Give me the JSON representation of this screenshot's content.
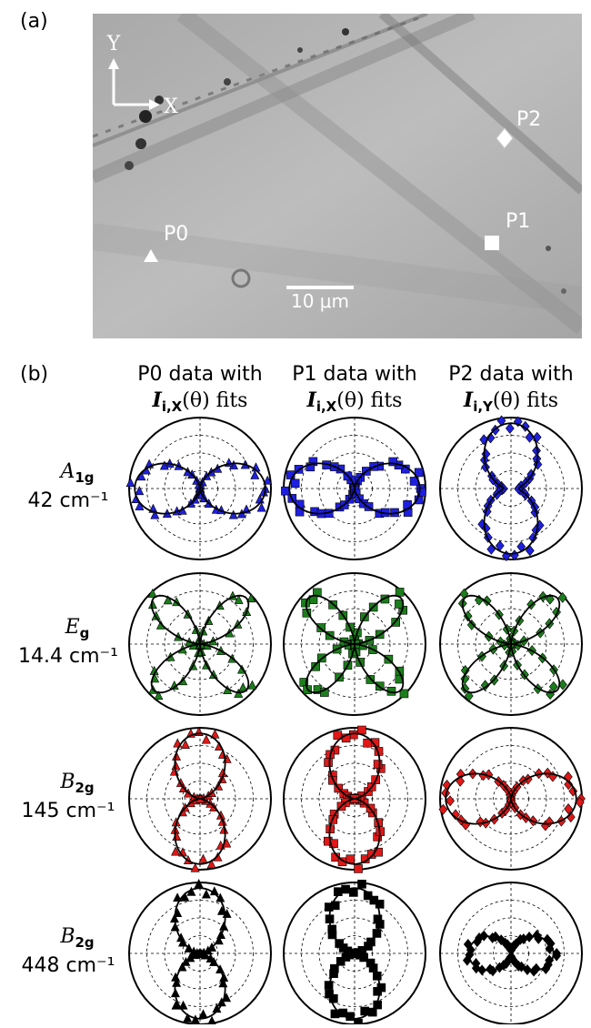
{
  "panel_a": {
    "label": "(a)",
    "axis_y": "Y",
    "axis_x": "X",
    "points": [
      "P0",
      "P1",
      "P2"
    ],
    "scale_bar": "10 μm"
  },
  "panel_b": {
    "label": "(b)",
    "columns": [
      {
        "line1": "P0 data with",
        "symbol": "I",
        "subscript": "i,X",
        "rest": "(θ) fits"
      },
      {
        "line1": "P1 data with",
        "symbol": "I",
        "subscript": "i,X",
        "rest": "(θ) fits"
      },
      {
        "line1": "P2 data with",
        "symbol": "I",
        "subscript": "i,Y",
        "rest": "(θ) fits"
      }
    ],
    "rows": [
      {
        "symbol": "A",
        "subscript": "1g",
        "wavenumber": "42 cm⁻¹"
      },
      {
        "symbol": "E",
        "subscript": "g",
        "wavenumber": "14.4 cm⁻¹"
      },
      {
        "symbol": "B",
        "subscript": "2g",
        "wavenumber": "145 cm⁻¹"
      },
      {
        "symbol": "B",
        "subscript": "2g",
        "wavenumber": "448 cm⁻¹"
      }
    ]
  }
}
